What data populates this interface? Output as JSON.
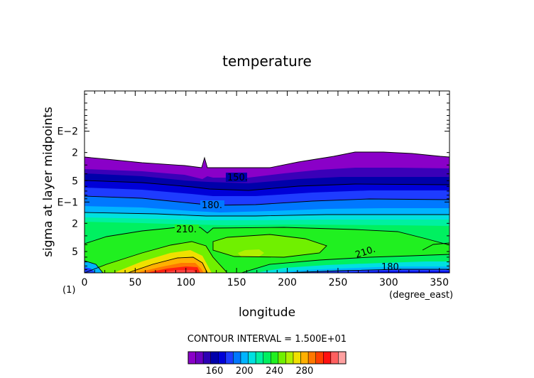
{
  "chart_data": {
    "type": "heatmap",
    "title": "temperature",
    "xlabel": "longitude",
    "ylabel": "sigma at layer midpoints",
    "x_unit": "(degree_east)",
    "x_corner_label": "(1)",
    "x_range": [
      0,
      360
    ],
    "x_ticks": [
      0,
      50,
      100,
      150,
      200,
      250,
      300,
      350
    ],
    "y_scale": "log",
    "y_range_sigma": [
      0.0027,
      1.0
    ],
    "y_tick_labels": [
      "E−2",
      "2",
      "5",
      "E−1",
      "2",
      "5"
    ],
    "contour_interval_text": "CONTOUR INTERVAL = 1.500E+01",
    "contour_labels": [
      "150.",
      "180.",
      "210.",
      "210.",
      "180."
    ],
    "colorbar": {
      "tick_labels": [
        "160",
        "200",
        "240",
        "280"
      ],
      "colors": [
        "#8a00c8",
        "#6a00c0",
        "#2c00b4",
        "#0000aa",
        "#0000d8",
        "#1e3cff",
        "#0078ff",
        "#00b4ff",
        "#00e0e0",
        "#00f0a0",
        "#00f060",
        "#20f020",
        "#70f000",
        "#b0f000",
        "#f0e000",
        "#ffb000",
        "#ff7800",
        "#ff4000",
        "#ff1010",
        "#ff6060",
        "#ffa0a0"
      ]
    }
  }
}
